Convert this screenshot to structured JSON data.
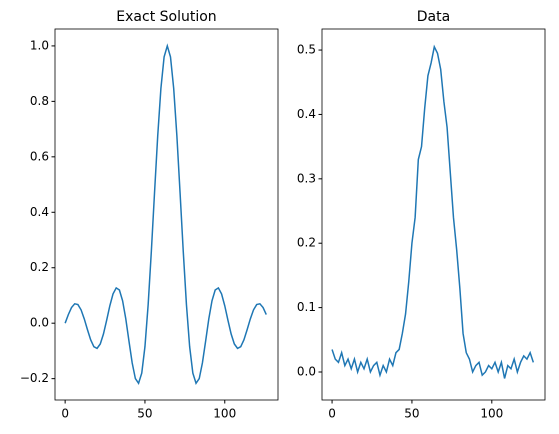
{
  "chart_data": [
    {
      "type": "line",
      "title": "Exact Solution",
      "color": "#1f77b4",
      "x": [
        0,
        2,
        4,
        6,
        8,
        10,
        12,
        14,
        16,
        18,
        20,
        22,
        24,
        26,
        28,
        30,
        32,
        34,
        36,
        38,
        40,
        42,
        44,
        46,
        48,
        50,
        52,
        54,
        56,
        58,
        60,
        62,
        64,
        66,
        68,
        70,
        72,
        74,
        76,
        78,
        80,
        82,
        84,
        86,
        88,
        90,
        92,
        94,
        96,
        98,
        100,
        102,
        104,
        106,
        108,
        110,
        112,
        114,
        116,
        118,
        120,
        122,
        124,
        126
      ],
      "values": [
        0,
        0.031,
        0.0565,
        0.0699,
        0.0672,
        0.0479,
        0.0153,
        -0.0237,
        -0.06,
        -0.0848,
        -0.0908,
        -0.075,
        -0.039,
        0.0105,
        0.0629,
        0.1057,
        0.1273,
        0.1198,
        0.0808,
        0.0154,
        -0.065,
        -0.1432,
        -0.1998,
        -0.2166,
        -0.1801,
        -0.0845,
        0.0662,
        0.2585,
        0.4705,
        0.6758,
        0.847,
        0.9603,
        1,
        0.9603,
        0.847,
        0.6758,
        0.4705,
        0.2585,
        0.0662,
        -0.0845,
        -0.1801,
        -0.2166,
        -0.1998,
        -0.1432,
        -0.065,
        0.0154,
        0.0808,
        0.1198,
        0.1273,
        0.1057,
        0.0629,
        0.0105,
        -0.039,
        -0.075,
        -0.0908,
        -0.0848,
        -0.06,
        -0.0237,
        0.0153,
        0.0479,
        0.0672,
        0.0699,
        0.0565,
        0.031
      ],
      "xlim": [
        -6.35,
        133.35
      ],
      "xticks": [
        0,
        50,
        100
      ],
      "ylim": [
        -0.277,
        1.061
      ],
      "yticks": [
        {
          "value": -0.2,
          "label": "−0.2"
        },
        {
          "value": 0,
          "label": "0.0"
        },
        0.2,
        0.4,
        0.6,
        0.8,
        {
          "value": 1,
          "label": "1.0"
        }
      ]
    },
    {
      "type": "line",
      "title": "Data",
      "color": "#1f77b4",
      "x": [
        0,
        2,
        4,
        6,
        8,
        10,
        12,
        14,
        16,
        18,
        20,
        22,
        24,
        26,
        28,
        30,
        32,
        34,
        36,
        38,
        40,
        42,
        44,
        46,
        48,
        50,
        52,
        54,
        56,
        58,
        60,
        62,
        64,
        66,
        68,
        70,
        72,
        74,
        76,
        78,
        80,
        82,
        84,
        86,
        88,
        90,
        92,
        94,
        96,
        98,
        100,
        102,
        104,
        106,
        108,
        110,
        112,
        114,
        116,
        118,
        120,
        122,
        124,
        126
      ],
      "values": [
        0.035,
        0.02,
        0.015,
        0.03,
        0.01,
        0.02,
        0.005,
        0.02,
        0,
        0.015,
        0.005,
        0.02,
        0,
        0.01,
        0.015,
        -0.005,
        0.01,
        0,
        0.02,
        0.01,
        0.03,
        0.035,
        0.06,
        0.09,
        0.14,
        0.2,
        0.24,
        0.33,
        0.35,
        0.41,
        0.46,
        0.48,
        0.505,
        0.495,
        0.47,
        0.42,
        0.38,
        0.31,
        0.24,
        0.19,
        0.13,
        0.06,
        0.03,
        0.02,
        0,
        0.01,
        0.015,
        -0.005,
        0,
        0.01,
        0.005,
        0.015,
        0,
        0.015,
        -0.01,
        0.01,
        0.005,
        0.02,
        0,
        0.015,
        0.025,
        0.02,
        0.03,
        0.015
      ],
      "xlim": [
        -6.3,
        133.3
      ],
      "xticks": [
        0,
        50,
        100
      ],
      "ylim": [
        -0.0435,
        0.5327
      ],
      "yticks": [
        {
          "value": 0,
          "label": "0.0"
        },
        0.1,
        0.2,
        0.3,
        0.4,
        0.5
      ]
    }
  ]
}
